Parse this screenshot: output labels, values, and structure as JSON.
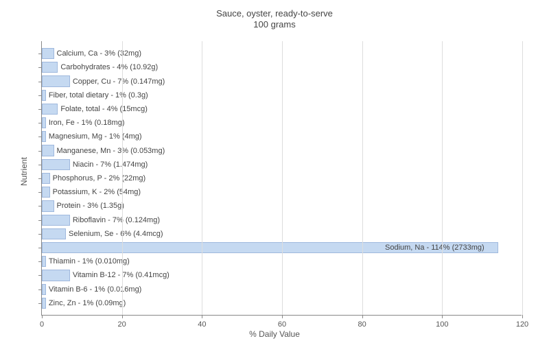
{
  "chart": {
    "type": "bar-horizontal",
    "title_line1": "Sauce, oyster, ready-to-serve",
    "title_line2": "100 grams",
    "title_fontsize": 13,
    "title_color": "#444444",
    "xlabel": "% Daily Value",
    "ylabel": "Nutrient",
    "axis_label_fontsize": 12,
    "tick_fontsize": 11,
    "bar_label_fontsize": 11,
    "background_color": "#ffffff",
    "grid_color": "#dddddd",
    "axis_color": "#888888",
    "xlim_min": 0,
    "xlim_max": 120,
    "xtick_step": 20,
    "xticks": [
      "0",
      "20",
      "40",
      "60",
      "80",
      "100",
      "120"
    ],
    "bar_fill": "#c5d9f1",
    "bar_border": "#9fb8dd",
    "bar_label_color": "#444444",
    "bars": [
      {
        "value": 3,
        "label": "Calcium, Ca - 3% (32mg)"
      },
      {
        "value": 4,
        "label": "Carbohydrates - 4% (10.92g)"
      },
      {
        "value": 7,
        "label": "Copper, Cu - 7% (0.147mg)"
      },
      {
        "value": 1,
        "label": "Fiber, total dietary - 1% (0.3g)"
      },
      {
        "value": 4,
        "label": "Folate, total - 4% (15mcg)"
      },
      {
        "value": 1,
        "label": "Iron, Fe - 1% (0.18mg)"
      },
      {
        "value": 1,
        "label": "Magnesium, Mg - 1% (4mg)"
      },
      {
        "value": 3,
        "label": "Manganese, Mn - 3% (0.053mg)"
      },
      {
        "value": 7,
        "label": "Niacin - 7% (1.474mg)"
      },
      {
        "value": 2,
        "label": "Phosphorus, P - 2% (22mg)"
      },
      {
        "value": 2,
        "label": "Potassium, K - 2% (54mg)"
      },
      {
        "value": 3,
        "label": "Protein - 3% (1.35g)"
      },
      {
        "value": 7,
        "label": "Riboflavin - 7% (0.124mg)"
      },
      {
        "value": 6,
        "label": "Selenium, Se - 6% (4.4mcg)"
      },
      {
        "value": 114,
        "label": "Sodium, Na - 114% (2733mg)"
      },
      {
        "value": 1,
        "label": "Thiamin - 1% (0.010mg)"
      },
      {
        "value": 7,
        "label": "Vitamin B-12 - 7% (0.41mcg)"
      },
      {
        "value": 1,
        "label": "Vitamin B-6 - 1% (0.016mg)"
      },
      {
        "value": 1,
        "label": "Zinc, Zn - 1% (0.09mg)"
      }
    ]
  }
}
